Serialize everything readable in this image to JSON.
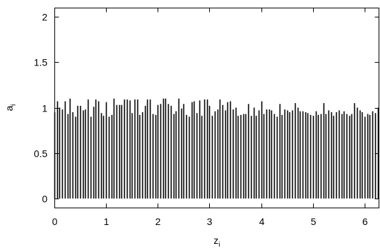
{
  "chart_data": {
    "type": "bar",
    "xlabel": "z",
    "xlabel_sub": "i",
    "ylabel": "a",
    "ylabel_sub": "i",
    "xlim": [
      0,
      6.2832
    ],
    "ylim": [
      -0.1,
      2.1
    ],
    "xticks": [
      "0",
      "1",
      "2",
      "3",
      "4",
      "5",
      "6"
    ],
    "yticks": [
      "0",
      "0.5",
      "1",
      "1.5",
      "2"
    ],
    "grid": false,
    "bar_color": "#000000",
    "x": [
      0.0,
      0.05,
      0.1,
      0.15,
      0.2,
      0.25,
      0.3,
      0.35,
      0.4,
      0.45,
      0.5,
      0.55,
      0.6,
      0.65,
      0.7,
      0.75,
      0.8,
      0.85,
      0.9,
      0.95,
      1.0,
      1.05,
      1.1,
      1.15,
      1.2,
      1.25,
      1.3,
      1.35,
      1.4,
      1.45,
      1.5,
      1.55,
      1.6,
      1.65,
      1.7,
      1.75,
      1.8,
      1.85,
      1.9,
      1.95,
      2.0,
      2.05,
      2.1,
      2.15,
      2.2,
      2.25,
      2.3,
      2.35,
      2.4,
      2.45,
      2.5,
      2.55,
      2.6,
      2.65,
      2.7,
      2.75,
      2.8,
      2.85,
      2.9,
      2.95,
      3.0,
      3.05,
      3.1,
      3.15,
      3.2,
      3.25,
      3.3,
      3.35,
      3.4,
      3.45,
      3.5,
      3.55,
      3.6,
      3.65,
      3.7,
      3.75,
      3.8,
      3.85,
      3.9,
      3.95,
      4.0,
      4.05,
      4.1,
      4.15,
      4.2,
      4.25,
      4.3,
      4.35,
      4.4,
      4.45,
      4.5,
      4.55,
      4.6,
      4.65,
      4.7,
      4.75,
      4.8,
      4.85,
      4.9,
      4.95,
      5.0,
      5.05,
      5.1,
      5.15,
      5.2,
      5.25,
      5.3,
      5.35,
      5.4,
      5.45,
      5.5,
      5.55,
      5.6,
      5.65,
      5.7,
      5.75,
      5.8,
      5.85,
      5.9,
      5.95,
      6.0,
      6.05,
      6.1,
      6.15,
      6.2,
      6.25
    ],
    "values": [
      0.95,
      1.07,
      1.0,
      0.98,
      1.07,
      0.93,
      1.1,
      0.95,
      0.9,
      1.02,
      1.02,
      0.97,
      0.98,
      1.09,
      0.9,
      1.01,
      1.09,
      1.07,
      0.94,
      0.91,
      1.06,
      0.9,
      0.92,
      1.1,
      1.03,
      1.03,
      1.03,
      1.09,
      1.09,
      1.08,
      0.94,
      1.09,
      1.09,
      0.92,
      0.95,
      1.02,
      1.09,
      1.09,
      0.93,
      0.92,
      1.03,
      1.04,
      1.1,
      1.1,
      1.04,
      1.02,
      0.93,
      0.96,
      1.1,
      0.99,
      1.04,
      0.92,
      0.9,
      1.06,
      1.07,
      0.94,
      1.08,
      0.91,
      1.09,
      1.09,
      1.02,
      0.91,
      0.96,
      0.98,
      1.09,
      1.03,
      0.97,
      1.06,
      1.07,
      0.98,
      1.0,
      0.91,
      0.92,
      0.93,
      0.93,
      1.04,
      0.91,
      1.0,
      0.91,
      0.97,
      1.07,
      0.93,
      0.98,
      0.98,
      0.97,
      0.93,
      0.9,
      1.04,
      0.92,
      0.98,
      0.97,
      0.95,
      0.97,
      1.05,
      1.0,
      0.96,
      0.96,
      0.95,
      0.94,
      0.92,
      0.91,
      0.96,
      0.92,
      0.93,
      1.05,
      0.93,
      0.97,
      0.95,
      0.91,
      0.95,
      0.97,
      0.93,
      0.96,
      0.93,
      0.91,
      0.93,
      1.05,
      1.0,
      0.97,
      0.95,
      0.9,
      0.93,
      0.92,
      0.96,
      0.94,
      1.0
    ]
  }
}
